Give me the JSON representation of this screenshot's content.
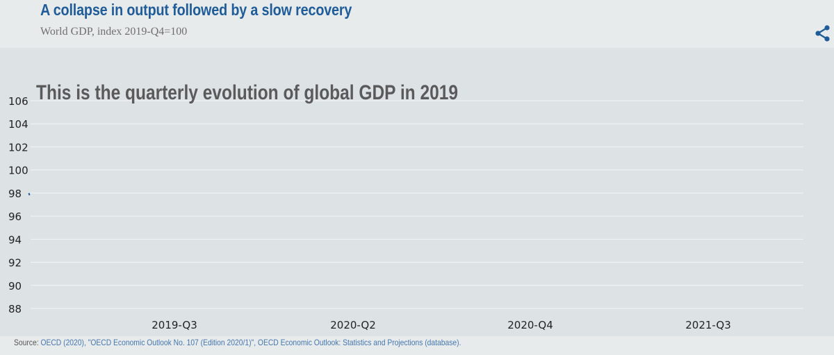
{
  "header": {
    "title": "A collapse in output followed by a slow recovery",
    "subtitle": "World GDP, index 2019-Q4=100"
  },
  "share": {
    "icon": "share-icon"
  },
  "chart_data": {
    "type": "line",
    "annotation": "This is the quarterly evolution of global GDP in 2019",
    "ylim": [
      88,
      106
    ],
    "y_ticks": [
      "106",
      "104",
      "102",
      "100",
      "98",
      "96",
      "94",
      "92",
      "90",
      "88"
    ],
    "x_ticks": [
      "2019-Q3",
      "2020-Q2",
      "2020-Q4",
      "2021-Q3"
    ],
    "grid": "horizontal",
    "series": [
      {
        "color": "#1f5c99",
        "values": []
      }
    ]
  },
  "footer": {
    "source_label": "Source:",
    "source_text": "OECD (2020), \"OECD Economic Outlook No. 107 (Edition 2020/1)\", OECD Economic Outlook: Statistics and Projections (database)."
  },
  "colors": {
    "title": "#1f5c99",
    "plot_background": "#dde2e5",
    "header_background": "#e7ebeb",
    "grid": "#f3f5f6",
    "link": "#4476b0"
  }
}
